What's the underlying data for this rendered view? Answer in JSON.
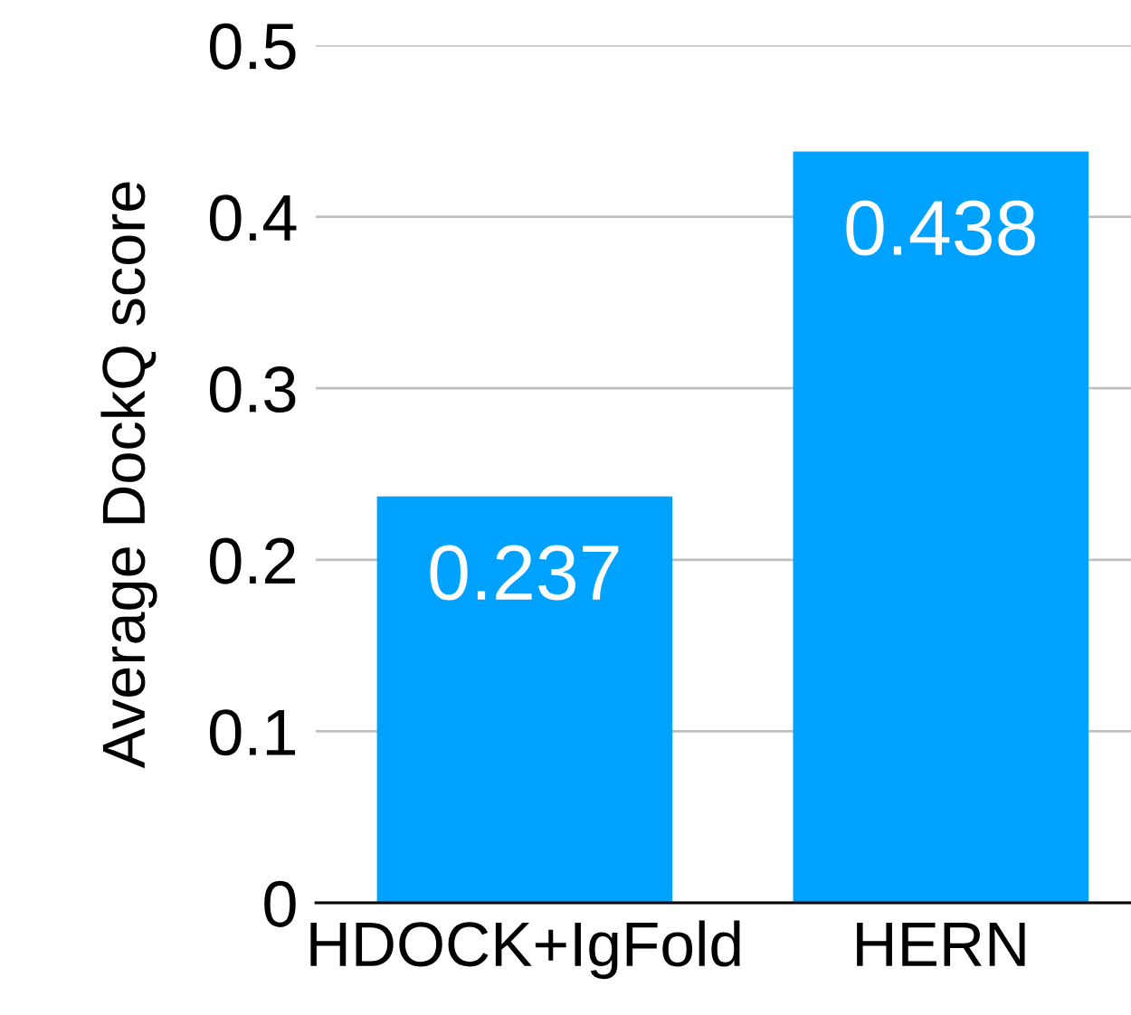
{
  "chart_data": {
    "type": "bar",
    "ylabel": "Average DockQ score",
    "categories": [
      "HDOCK+IgFold",
      "HERN"
    ],
    "values": [
      0.237,
      0.438
    ],
    "color": "#00a2ff",
    "ylim": [
      0,
      0.5
    ],
    "yticks": [
      0,
      0.1,
      0.2,
      0.3,
      0.4,
      0.5
    ],
    "grid": "y",
    "data_labels": true
  }
}
